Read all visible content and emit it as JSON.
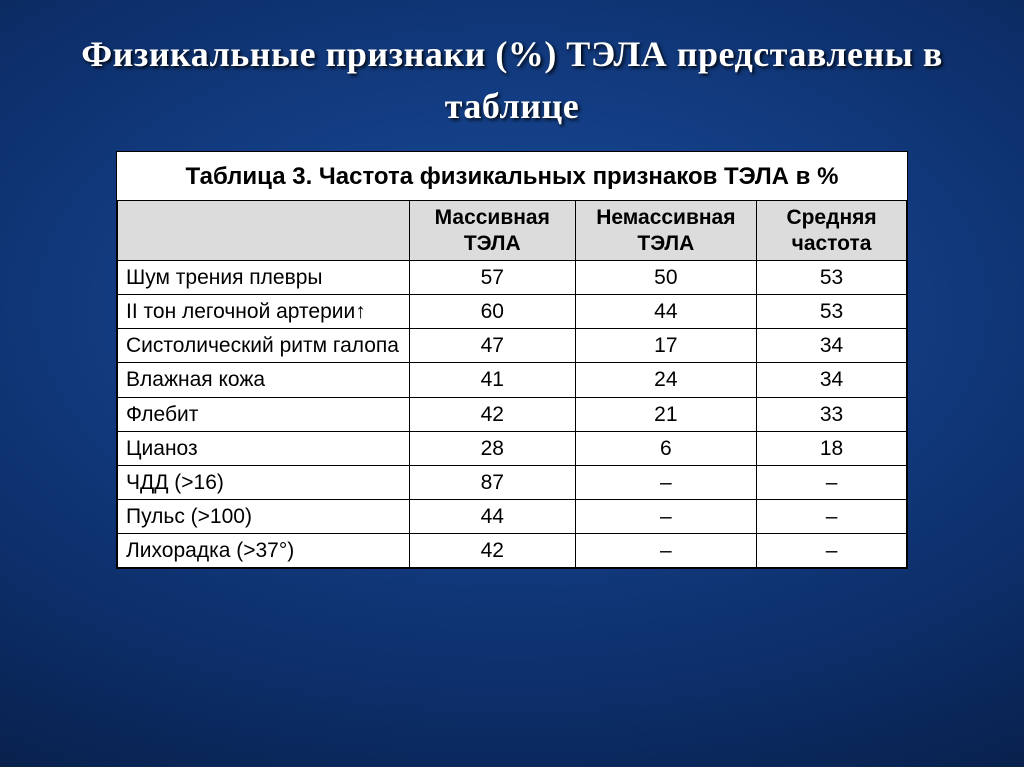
{
  "slide": {
    "title": "Физикальные признаки (%) ТЭЛА представлены в таблице",
    "background_gradient_center": "#1a4d9e",
    "background_gradient_edge": "#000814",
    "title_color": "#ffffff",
    "title_fontsize_pt": 28,
    "title_font_family": "Times New Roman"
  },
  "table": {
    "type": "table",
    "caption": "Таблица 3. Частота физикальных признаков ТЭЛА в %",
    "caption_fontsize_pt": 18,
    "background_color": "#ffffff",
    "header_background": "#dcdcdc",
    "border_color": "#000000",
    "text_color": "#000000",
    "cell_fontsize_pt": 16,
    "column_widths_pct": [
      37,
      21,
      23,
      19
    ],
    "columns": [
      "",
      "Массивная ТЭЛА",
      "Немассивная ТЭЛА",
      "Средняя частота"
    ],
    "rows": [
      [
        "Шум трения плевры",
        "57",
        "50",
        "53"
      ],
      [
        "II тон легочной артерии↑",
        "60",
        "44",
        "53"
      ],
      [
        "Систолический ритм галопа",
        "47",
        "17",
        "34"
      ],
      [
        "Влажная кожа",
        "41",
        "24",
        "34"
      ],
      [
        "Флебит",
        "42",
        "21",
        "33"
      ],
      [
        "Цианоз",
        "28",
        "6",
        "18"
      ],
      [
        "ЧДД (>16)",
        "87",
        "–",
        "–"
      ],
      [
        "Пульс (>100)",
        "44",
        "–",
        "–"
      ],
      [
        "Лихорадка (>37°)",
        "42",
        "–",
        "–"
      ]
    ]
  }
}
